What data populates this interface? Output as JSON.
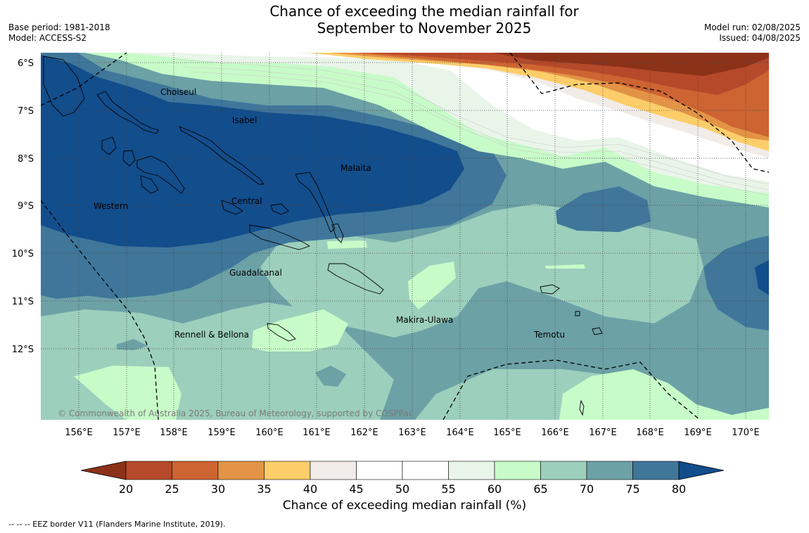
{
  "header": {
    "title_line1": "Chance of exceeding the median rainfall for",
    "title_line2": "September to November 2025",
    "base_period": "Base period: 1981-2018",
    "model": "Model: ACCESS-S2",
    "model_run": "Model run: 02/08/2025",
    "issued": "Issued: 04/08/2025"
  },
  "map": {
    "lat_labels": [
      "6°S",
      "7°S",
      "8°S",
      "9°S",
      "10°S",
      "11°S",
      "12°S"
    ],
    "lon_labels": [
      "156°E",
      "157°E",
      "158°E",
      "159°E",
      "160°E",
      "161°E",
      "162°E",
      "163°E",
      "164°E",
      "165°E",
      "166°E",
      "167°E",
      "168°E",
      "169°E",
      "170°E"
    ],
    "regions": [
      "Choiseul",
      "Isabel",
      "Malaita",
      "Western",
      "Central",
      "Guadalcanal",
      "Makira-Ulawa",
      "Rennell & Bellona",
      "Temotu"
    ],
    "copyright": "© Commonwealth of Australia 2025, Bureau of Meteorology, supported by COSPPac"
  },
  "colorbar": {
    "ticks": [
      "20",
      "25",
      "30",
      "35",
      "40",
      "45",
      "50",
      "55",
      "60",
      "65",
      "70",
      "75",
      "80"
    ],
    "colors": [
      "#8b3219",
      "#b5492a",
      "#cd6432",
      "#e39346",
      "#fccd69",
      "#f1ece8",
      "#ffffff",
      "#ffffff",
      "#eaf5ea",
      "#c7fbc8",
      "#9ccfbc",
      "#6ca1a6",
      "#3f769a",
      "#124d8c"
    ],
    "title": "Chance of exceeding median rainfall (%)"
  },
  "footnote": "--  --  -- EEZ border V11 (Flanders Marine Institute, 2019)."
}
